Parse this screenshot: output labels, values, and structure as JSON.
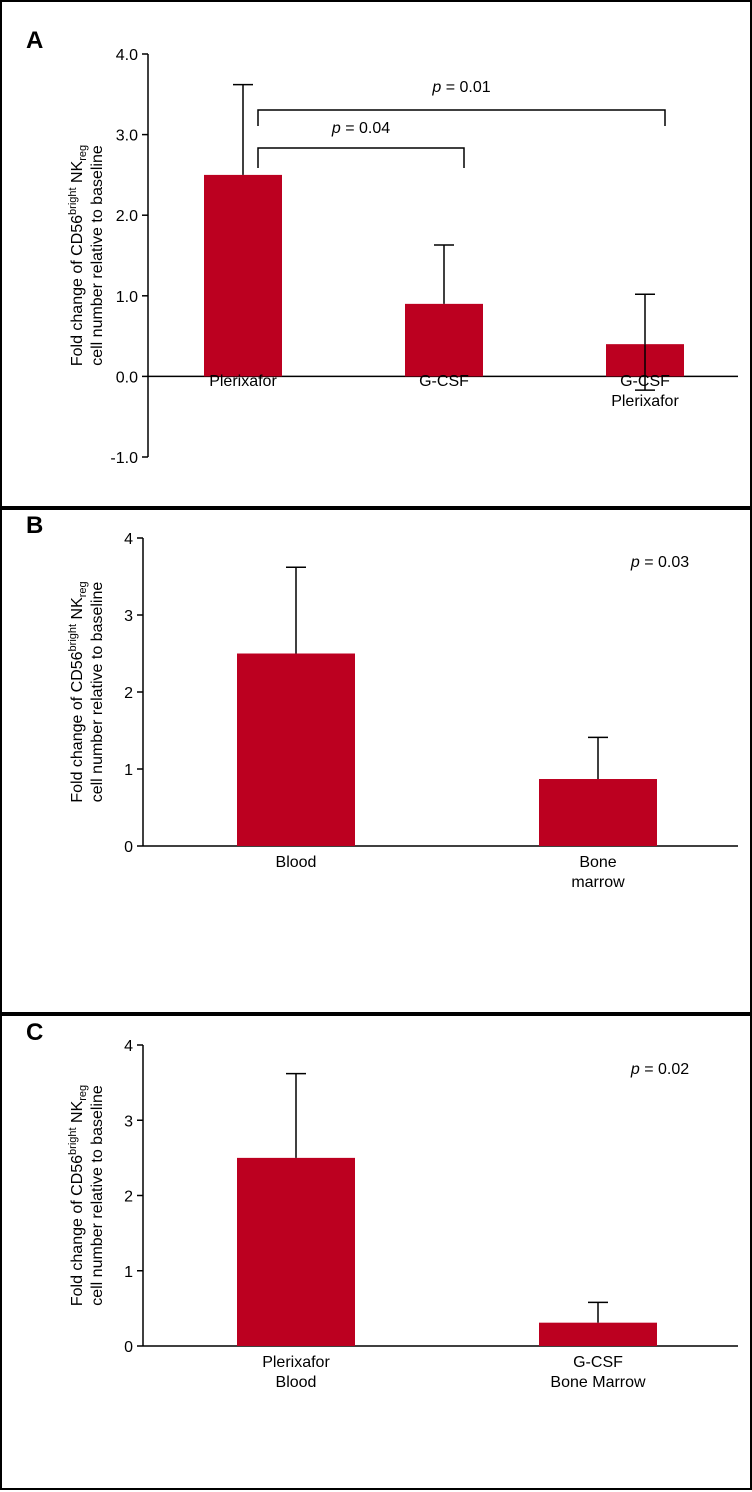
{
  "colors": {
    "bar": "#bc0020",
    "axis": "#000000",
    "border": "#000000"
  },
  "chart_data": [
    {
      "panel_label": "A",
      "type": "bar",
      "ylabel_lines": [
        {
          "pre": "Fold change of CD56",
          "sup": "bright",
          "mid": " NK",
          "sub": "reg"
        },
        {
          "pre": "cell number relative to baseline"
        }
      ],
      "ylim": [
        -1,
        4
      ],
      "yticks": [
        -1,
        0,
        1,
        2,
        3,
        4
      ],
      "ytick_labels": [
        "-1.0",
        "0.0",
        "1.0",
        "2.0",
        "3.0",
        "4.0"
      ],
      "categories": [
        [
          "Plerixafor"
        ],
        [
          "G-CSF"
        ],
        [
          "G-CSF",
          "Plerixafor"
        ]
      ],
      "values": [
        2.5,
        0.9,
        0.4
      ],
      "error_bars": [
        {
          "upper": 3.62,
          "lower": null
        },
        {
          "upper": 1.63,
          "lower": null
        },
        {
          "upper": 1.02,
          "lower": -0.17
        }
      ],
      "annotations": [
        {
          "from": 0,
          "to": 1,
          "p_symbol": "p",
          "p_text": " = 0.04"
        },
        {
          "from": 0,
          "to": 2,
          "p_symbol": "p",
          "p_text": " = 0.01"
        }
      ]
    },
    {
      "panel_label": "B",
      "type": "bar",
      "ylabel_lines": [
        {
          "pre": "Fold change of CD56",
          "sup": "bright",
          "mid": " NK",
          "sub": "reg"
        },
        {
          "pre": "cell number relative to baseline"
        }
      ],
      "ylim": [
        0,
        4
      ],
      "yticks": [
        0,
        1,
        2,
        3,
        4
      ],
      "ytick_labels": [
        "0",
        "1",
        "2",
        "3",
        "4"
      ],
      "categories": [
        [
          "Blood"
        ],
        [
          "Bone",
          "marrow"
        ]
      ],
      "values": [
        2.5,
        0.87
      ],
      "error_bars": [
        {
          "upper": 3.62,
          "lower": null
        },
        {
          "upper": 1.41,
          "lower": null
        }
      ],
      "p_symbol": "p",
      "p_text": " = 0.03"
    },
    {
      "panel_label": "C",
      "type": "bar",
      "ylabel_lines": [
        {
          "pre": "Fold change of CD56",
          "sup": "bright",
          "mid": " NK",
          "sub": "reg"
        },
        {
          "pre": "cell number relative to baseline"
        }
      ],
      "ylim": [
        0,
        4
      ],
      "yticks": [
        0,
        1,
        2,
        3,
        4
      ],
      "ytick_labels": [
        "0",
        "1",
        "2",
        "3",
        "4"
      ],
      "categories": [
        [
          "Plerixafor",
          "Blood"
        ],
        [
          "G-CSF",
          "Bone Marrow"
        ]
      ],
      "values": [
        2.5,
        0.31
      ],
      "error_bars": [
        {
          "upper": 3.62,
          "lower": null
        },
        {
          "upper": 0.58,
          "lower": null
        }
      ],
      "p_symbol": "p",
      "p_text": " = 0.02"
    }
  ]
}
